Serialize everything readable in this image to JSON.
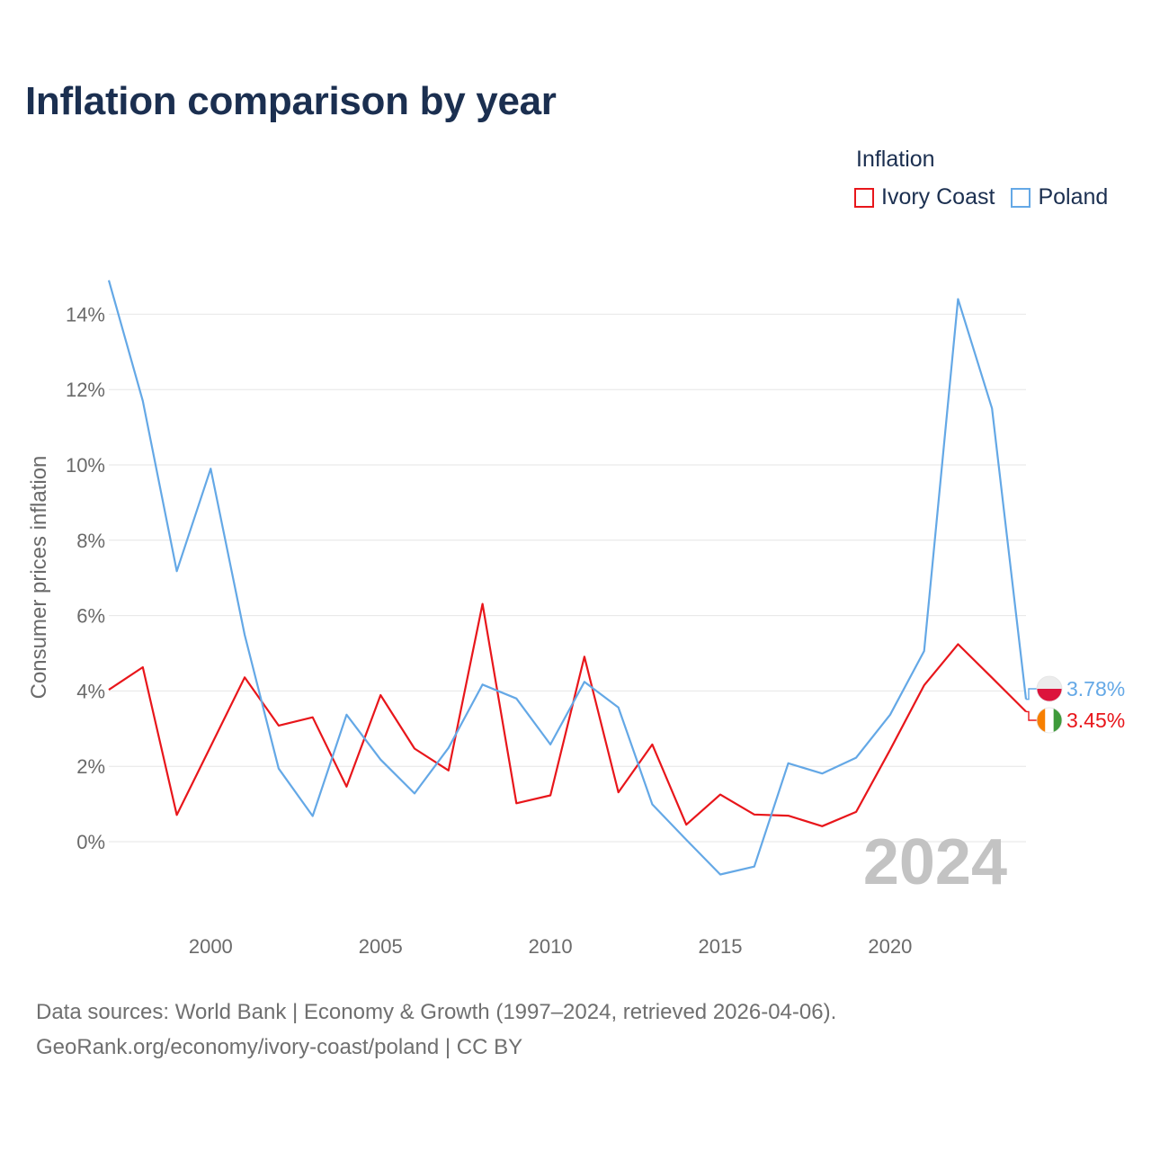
{
  "title": "Inflation comparison by year",
  "legend": {
    "title": "Inflation",
    "items": [
      {
        "label": "Ivory Coast",
        "color": "#e8161b"
      },
      {
        "label": "Poland",
        "color": "#64a8e6"
      }
    ]
  },
  "footer": {
    "line1": "Data sources: World Bank | Economy & Growth (1997–2024, retrieved 2026-04-06).",
    "line2": "GeoRank.org/economy/ivory-coast/poland | CC BY"
  },
  "chart_data": {
    "type": "line",
    "title": "Inflation comparison by year",
    "xlabel": "",
    "ylabel": "Consumer prices inflation",
    "x": [
      1997,
      1998,
      1999,
      2000,
      2001,
      2002,
      2003,
      2004,
      2005,
      2006,
      2007,
      2008,
      2009,
      2010,
      2011,
      2012,
      2013,
      2014,
      2015,
      2016,
      2017,
      2018,
      2019,
      2020,
      2021,
      2022,
      2023,
      2024
    ],
    "xlim": [
      1997,
      2024
    ],
    "xticks": [
      "2000",
      "2005",
      "2010",
      "2015",
      "2020"
    ],
    "ylim": [
      -2,
      15
    ],
    "yticks": [
      "0%",
      "2%",
      "4%",
      "6%",
      "8%",
      "10%",
      "12%",
      "14%"
    ],
    "grid": true,
    "year_stamp": "2024",
    "series": [
      {
        "name": "Ivory Coast",
        "color": "#e8161b",
        "flag": "ivory-coast-flag-icon",
        "end_label": "3.45%",
        "values": [
          4.03,
          4.63,
          0.71,
          2.53,
          4.36,
          3.08,
          3.3,
          1.46,
          3.89,
          2.47,
          1.89,
          6.31,
          1.02,
          1.23,
          4.91,
          1.31,
          2.58,
          0.45,
          1.25,
          0.72,
          0.69,
          0.41,
          0.79,
          2.44,
          4.15,
          5.24,
          4.35,
          3.45
        ]
      },
      {
        "name": "Poland",
        "color": "#64a8e6",
        "flag": "poland-flag-icon",
        "end_label": "3.78%",
        "values": [
          14.9,
          11.7,
          7.18,
          9.9,
          5.49,
          1.94,
          0.68,
          3.37,
          2.18,
          1.28,
          2.49,
          4.17,
          3.8,
          2.58,
          4.24,
          3.56,
          0.99,
          0.05,
          -0.87,
          -0.66,
          2.08,
          1.81,
          2.23,
          3.37,
          5.06,
          14.4,
          11.5,
          3.78
        ]
      }
    ]
  }
}
